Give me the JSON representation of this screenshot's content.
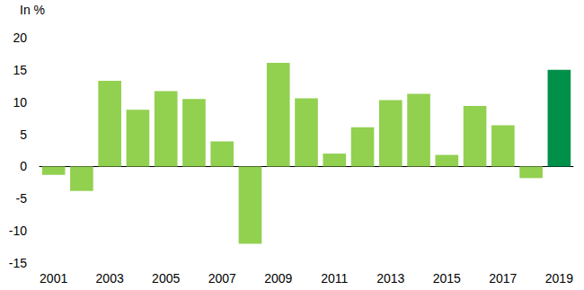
{
  "chart_data": {
    "type": "bar",
    "y_label": "In %",
    "categories": [
      "2001",
      null,
      "2003",
      null,
      "2005",
      null,
      "2007",
      null,
      "2009",
      null,
      "2011",
      null,
      "2013",
      null,
      "2015",
      null,
      "2017",
      null,
      "2019"
    ],
    "values": [
      -1.3,
      -3.8,
      13.3,
      8.8,
      11.7,
      10.5,
      3.9,
      -12,
      16.1,
      10.6,
      2.0,
      6.1,
      10.3,
      11.3,
      1.8,
      9.4,
      6.4,
      -1.8,
      15.0
    ],
    "colors": [
      "#92d050",
      "#92d050",
      "#92d050",
      "#92d050",
      "#92d050",
      "#92d050",
      "#92d050",
      "#92d050",
      "#92d050",
      "#92d050",
      "#92d050",
      "#92d050",
      "#92d050",
      "#92d050",
      "#92d050",
      "#92d050",
      "#92d050",
      "#92d050",
      "#00904a"
    ],
    "ylim": [
      -15,
      20
    ],
    "yticks": [
      -15,
      -10,
      -5,
      0,
      5,
      10,
      15,
      20
    ],
    "grid": false
  }
}
